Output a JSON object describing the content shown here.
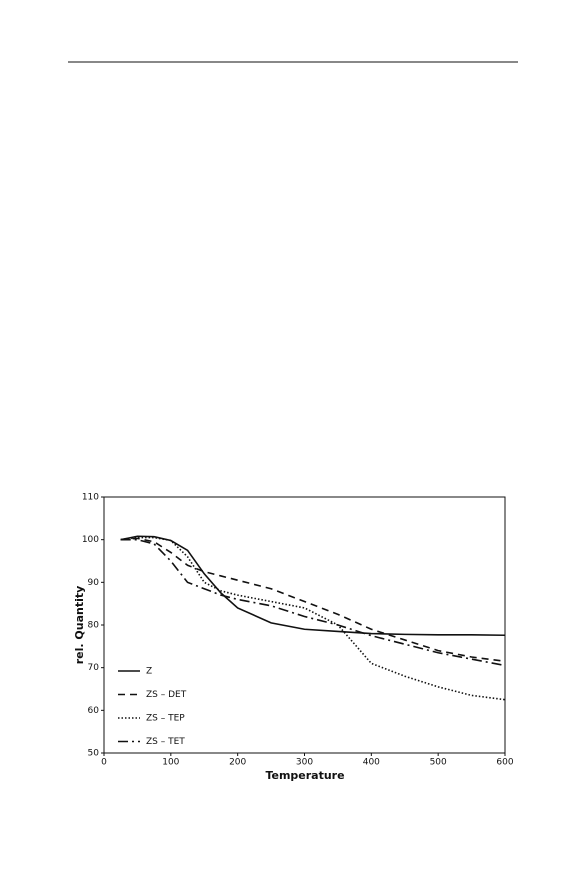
{
  "chart_data": {
    "type": "line",
    "xlabel": "Temperature",
    "ylabel": "rel. Quantity",
    "x": [
      25,
      50,
      75,
      100,
      125,
      150,
      175,
      200,
      250,
      300,
      350,
      400,
      450,
      500,
      550,
      600
    ],
    "series": [
      {
        "name": "Z",
        "color": "#111111",
        "dash": "none",
        "values": [
          100,
          100.8,
          100.7,
          99.8,
          97.5,
          92,
          87.5,
          84,
          80.5,
          79,
          78.5,
          78,
          77.8,
          77.7,
          77.7,
          77.6
        ]
      },
      {
        "name": "ZS – DET",
        "color": "#111111",
        "dash": "7 5",
        "values": [
          100,
          100.3,
          99.5,
          97,
          94,
          92.5,
          91.5,
          90.5,
          88.5,
          85.5,
          82.5,
          79,
          76.5,
          74,
          72.5,
          71.5
        ]
      },
      {
        "name": "ZS – TEP",
        "color": "#111111",
        "dash": "1.5 2",
        "values": [
          100,
          100.5,
          100.5,
          99.8,
          96,
          90,
          88,
          87,
          85.5,
          84,
          80,
          71,
          68,
          65.5,
          63.5,
          62.5
        ]
      },
      {
        "name": "ZS – TET",
        "color": "#111111",
        "dash": "10 4 2 4",
        "values": [
          100,
          100,
          99,
          95,
          90,
          88.5,
          87,
          86,
          84.5,
          82,
          80,
          77.5,
          75.5,
          73.5,
          72,
          70.5
        ]
      }
    ],
    "xlim": [
      0,
      600
    ],
    "xticks": [
      0,
      100,
      200,
      300,
      400,
      500,
      600
    ],
    "ylim": [
      50,
      110
    ],
    "yticks": [
      50,
      60,
      70,
      80,
      90,
      100,
      110
    ],
    "grid": false,
    "legend": "lower left"
  }
}
